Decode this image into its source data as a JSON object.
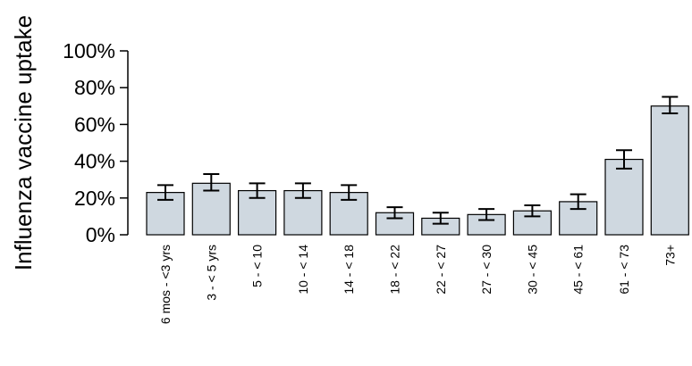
{
  "chart_data": {
    "type": "bar",
    "ylabel": "Influenza vaccine uptake",
    "xlabel": "",
    "ylim": [
      0,
      100
    ],
    "yticks": [
      "0%",
      "20%",
      "40%",
      "60%",
      "80%",
      "100%"
    ],
    "ytick_values": [
      0,
      20,
      40,
      60,
      80,
      100
    ],
    "categories": [
      "6 mos - <3 yrs",
      "3 - < 5 yrs",
      "5 - < 10",
      "10 - < 14",
      "14 - < 18",
      "18 - < 22",
      "22 - < 27",
      "27 - < 30",
      "30 - < 45",
      "45 - < 61",
      "61 - < 73",
      "73+"
    ],
    "values": [
      23,
      28,
      24,
      24,
      23,
      12,
      9,
      11,
      13,
      18,
      41,
      70
    ],
    "err_low": [
      19,
      24,
      20,
      20,
      19,
      9,
      6,
      8,
      10,
      14,
      36,
      66
    ],
    "err_high": [
      27,
      33,
      28,
      28,
      27,
      15,
      12,
      14,
      16,
      22,
      46,
      75
    ],
    "bar_color": "#cfd8e0",
    "grid": false
  }
}
